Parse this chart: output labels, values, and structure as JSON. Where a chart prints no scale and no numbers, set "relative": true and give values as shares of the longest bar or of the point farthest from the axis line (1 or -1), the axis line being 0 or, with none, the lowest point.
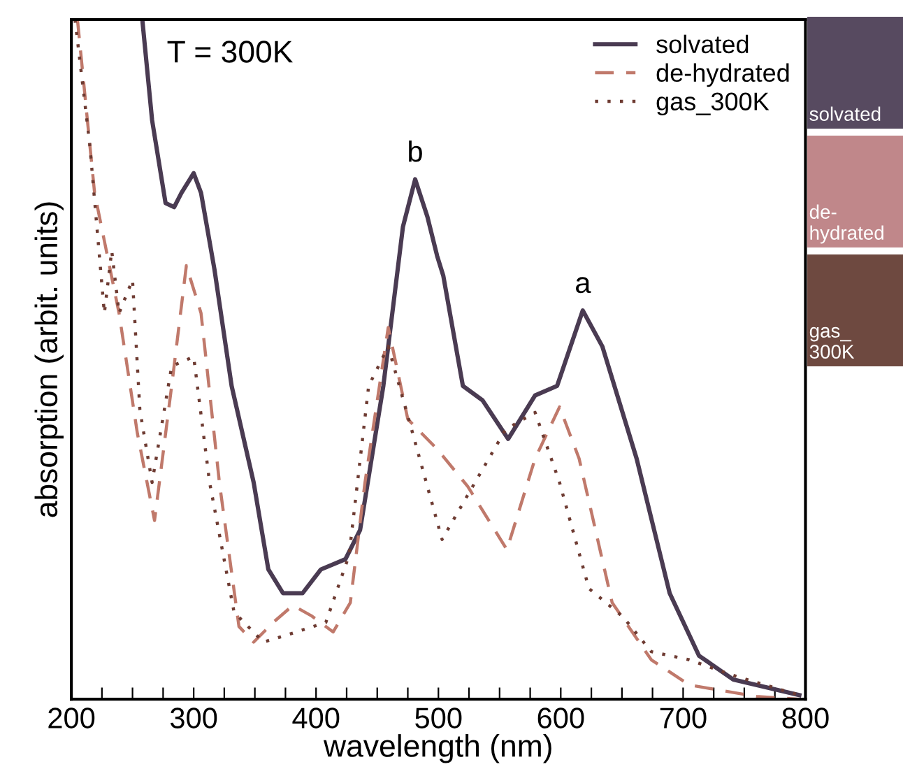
{
  "chart_data": {
    "type": "line",
    "relative": true,
    "xlabel": "wavelength (nm)",
    "ylabel": "absorption (arbit. units)",
    "xlim": [
      200,
      800
    ],
    "xticks": [
      200,
      {
        "value": 225,
        "label": null
      },
      {
        "value": 250,
        "label": null
      },
      {
        "value": 275,
        "label": null
      },
      300,
      {
        "value": 325,
        "label": null
      },
      {
        "value": 350,
        "label": null
      },
      {
        "value": 375,
        "label": null
      },
      400,
      {
        "value": 425,
        "label": null
      },
      {
        "value": 450,
        "label": null
      },
      {
        "value": 475,
        "label": null
      },
      500,
      {
        "value": 525,
        "label": null
      },
      {
        "value": 550,
        "label": null
      },
      {
        "value": 575,
        "label": null
      },
      600,
      {
        "value": 625,
        "label": null
      },
      {
        "value": 650,
        "label": null
      },
      {
        "value": 675,
        "label": null
      },
      700,
      {
        "value": 725,
        "label": null
      },
      {
        "value": 750,
        "label": null
      },
      {
        "value": 775,
        "label": null
      },
      800
    ],
    "legend": "top right",
    "grid": false,
    "series": [
      {
        "name": "solvated",
        "color": "#4a3b52",
        "line_style": "solid",
        "x": [
          258,
          266,
          277,
          284,
          290,
          300,
          306,
          317,
          331,
          349,
          361,
          373,
          389,
          404,
          424,
          436,
          455,
          471,
          481,
          491,
          499,
          504,
          520,
          536,
          557,
          579,
          597,
          618,
          634,
          662,
          689,
          713,
          741,
          795
        ],
        "values": [
          1.0,
          0.852,
          0.73,
          0.724,
          0.745,
          0.774,
          0.745,
          0.632,
          0.461,
          0.319,
          0.191,
          0.156,
          0.156,
          0.191,
          0.206,
          0.249,
          0.461,
          0.695,
          0.765,
          0.71,
          0.652,
          0.623,
          0.461,
          0.44,
          0.383,
          0.447,
          0.461,
          0.572,
          0.519,
          0.354,
          0.156,
          0.064,
          0.029,
          0.006
        ]
      },
      {
        "name": "de-hydrated",
        "color": "#c0796b",
        "line_style": "dashed",
        "x": [
          205,
          219,
          239,
          254,
          268,
          282,
          294,
          306,
          321,
          337,
          349,
          365,
          381,
          396,
          414,
          428,
          440,
          459,
          475,
          499,
          524,
          556,
          579,
          599,
          615,
          642,
          674,
          705,
          760,
          795
        ],
        "values": [
          1.0,
          0.745,
          0.568,
          0.391,
          0.263,
          0.461,
          0.638,
          0.568,
          0.319,
          0.107,
          0.084,
          0.113,
          0.138,
          0.123,
          0.099,
          0.142,
          0.319,
          0.547,
          0.412,
          0.368,
          0.313,
          0.22,
          0.354,
          0.43,
          0.354,
          0.142,
          0.058,
          0.021,
          0.004,
          0.0
        ]
      },
      {
        "name": "gas_300K",
        "color": "#6e3b32",
        "line_style": "dotted",
        "x": [
          203,
          215,
          227,
          233,
          239,
          250,
          256,
          266,
          282,
          300,
          313,
          333,
          357,
          384,
          408,
          427,
          443,
          459,
          479,
          503,
          528,
          555,
          579,
          599,
          623,
          651,
          674,
          705,
          741,
          795
        ],
        "values": [
          1.0,
          0.817,
          0.568,
          0.66,
          0.568,
          0.617,
          0.426,
          0.319,
          0.49,
          0.504,
          0.319,
          0.128,
          0.084,
          0.099,
          0.113,
          0.212,
          0.461,
          0.519,
          0.391,
          0.235,
          0.313,
          0.397,
          0.422,
          0.319,
          0.163,
          0.121,
          0.07,
          0.058,
          0.035,
          0.006
        ]
      }
    ],
    "annotations": [
      "T = 300K",
      {
        "text": "b",
        "x": 481,
        "y": 0.765
      },
      {
        "text": "a",
        "x": 618,
        "y": 0.572
      },
      "solvated",
      "de-\nhydrated",
      "gas_\n300K"
    ]
  }
}
